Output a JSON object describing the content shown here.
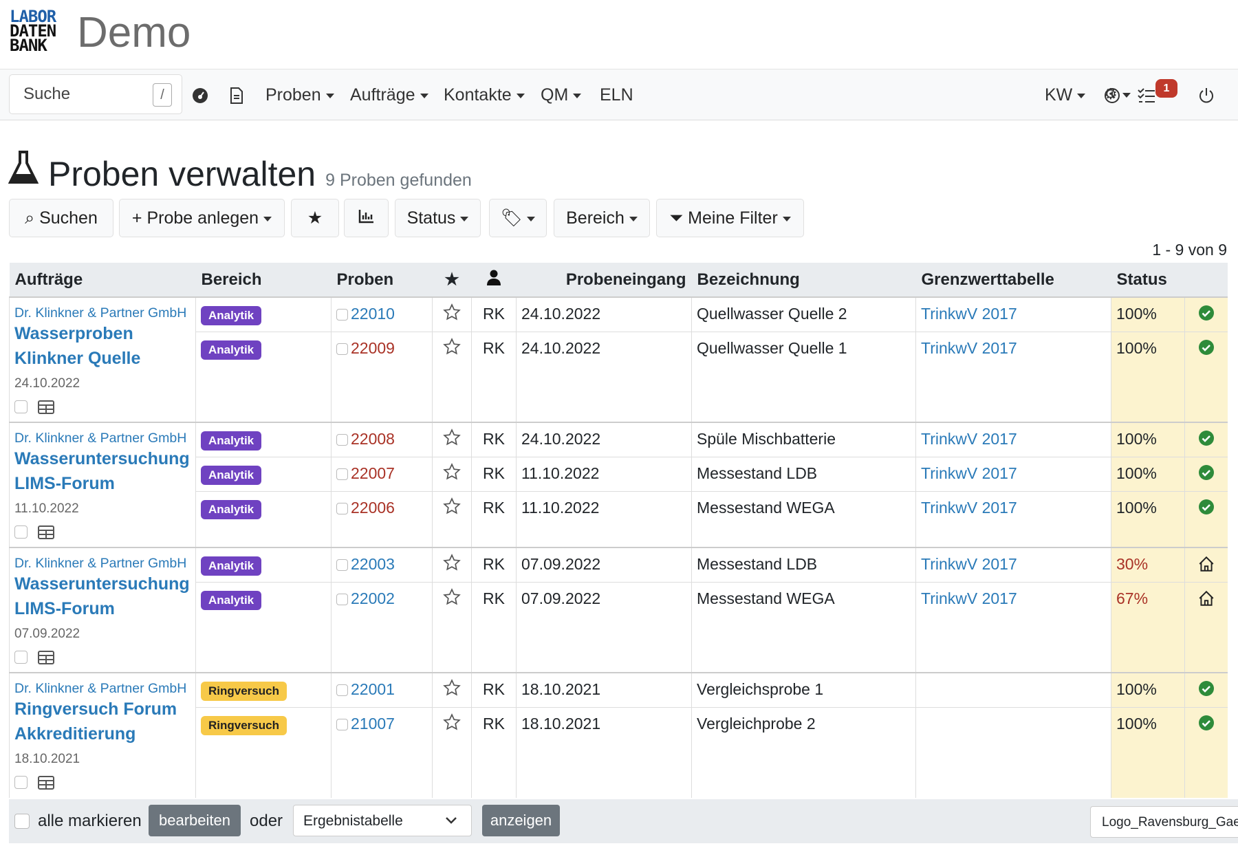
{
  "header": {
    "logo": [
      "LABOR",
      "DATEN",
      "BANK"
    ],
    "title": "Demo"
  },
  "nav": {
    "search": "Suche",
    "search_key": "/",
    "menus": [
      "Proben",
      "Aufträge",
      "Kontakte",
      "QM"
    ],
    "link": "ELN",
    "user": "KW",
    "badge": "1"
  },
  "page": {
    "title": "Proben verwalten",
    "subtitle": "9 Proben gefunden",
    "search": "Suchen",
    "create": "Probe anlegen",
    "status": "Status",
    "area": "Bereich",
    "filter": "Meine Filter",
    "pager": "1 - 9 von 9"
  },
  "table": {
    "headers": [
      "Aufträge",
      "Bereich",
      "Proben",
      "Probeneingang",
      "Bezeichnung",
      "Grenzwerttabelle",
      "Status"
    ],
    "groups": [
      {
        "client": "Dr. Klinkner & Partner GmbH",
        "name": "Wasserproben Klinkner Quelle",
        "date": "24.10.2022",
        "rows": [
          {
            "area": "Analytik",
            "area_color": "#6f42c1",
            "sample": "22010",
            "sample_color": "#2a7ab8",
            "user": "RK",
            "received": "24.10.2022",
            "label": "Quellwasser Quelle 2",
            "limits": "TrinkwV 2017",
            "status": "100%",
            "status_color": "#212529",
            "icon": "check"
          },
          {
            "area": "Analytik",
            "area_color": "#6f42c1",
            "sample": "22009",
            "sample_color": "#a93226",
            "user": "RK",
            "received": "24.10.2022",
            "label": "Quellwasser Quelle 1",
            "limits": "TrinkwV 2017",
            "status": "100%",
            "status_color": "#212529",
            "icon": "check"
          }
        ]
      },
      {
        "client": "Dr. Klinkner & Partner GmbH",
        "name": "Wasseruntersuchung LIMS-Forum",
        "date": "11.10.2022",
        "rows": [
          {
            "area": "Analytik",
            "area_color": "#6f42c1",
            "sample": "22008",
            "sample_color": "#a93226",
            "user": "RK",
            "received": "24.10.2022",
            "label": "Spüle Mischbatterie",
            "limits": "TrinkwV 2017",
            "status": "100%",
            "status_color": "#212529",
            "icon": "check"
          },
          {
            "area": "Analytik",
            "area_color": "#6f42c1",
            "sample": "22007",
            "sample_color": "#a93226",
            "user": "RK",
            "received": "11.10.2022",
            "label": "Messestand LDB",
            "limits": "TrinkwV 2017",
            "status": "100%",
            "status_color": "#212529",
            "icon": "check"
          },
          {
            "area": "Analytik",
            "area_color": "#6f42c1",
            "sample": "22006",
            "sample_color": "#a93226",
            "user": "RK",
            "received": "11.10.2022",
            "label": "Messestand WEGA",
            "limits": "TrinkwV 2017",
            "status": "100%",
            "status_color": "#212529",
            "icon": "check"
          }
        ]
      },
      {
        "client": "Dr. Klinkner & Partner GmbH",
        "name": "Wasseruntersuchung LIMS-Forum",
        "date": "07.09.2022",
        "rows": [
          {
            "area": "Analytik",
            "area_color": "#6f42c1",
            "sample": "22003",
            "sample_color": "#2a7ab8",
            "user": "RK",
            "received": "07.09.2022",
            "label": "Messestand LDB",
            "limits": "TrinkwV 2017",
            "status": "30%",
            "status_color": "#a93226",
            "icon": "home"
          },
          {
            "area": "Analytik",
            "area_color": "#6f42c1",
            "sample": "22002",
            "sample_color": "#2a7ab8",
            "user": "RK",
            "received": "07.09.2022",
            "label": "Messestand WEGA",
            "limits": "TrinkwV 2017",
            "status": "67%",
            "status_color": "#a93226",
            "icon": "home"
          }
        ]
      },
      {
        "client": "Dr. Klinkner & Partner GmbH",
        "name": "Ringversuch Forum Akkreditierung",
        "date": "18.10.2021",
        "rows": [
          {
            "area": "Ringversuch",
            "area_color": "#f7c948",
            "sample": "22001",
            "sample_color": "#2a7ab8",
            "user": "RK",
            "received": "18.10.2021",
            "label": "Vergleichsprobe 1",
            "limits": "",
            "status": "100%",
            "status_color": "#212529",
            "icon": "check"
          },
          {
            "area": "Ringversuch",
            "area_color": "#f7c948",
            "sample": "21007",
            "sample_color": "#2a7ab8",
            "user": "RK",
            "received": "18.10.2021",
            "label": "Vergleichprobe 2",
            "limits": "",
            "status": "100%",
            "status_color": "#212529",
            "icon": "check"
          }
        ]
      }
    ]
  },
  "footer": {
    "select_all": "alle markieren",
    "edit": "bearbeiten",
    "or": "oder",
    "select": "Ergebnistabelle",
    "show": "anzeigen",
    "tooltip": "Logo_Ravensburg_Gae"
  }
}
